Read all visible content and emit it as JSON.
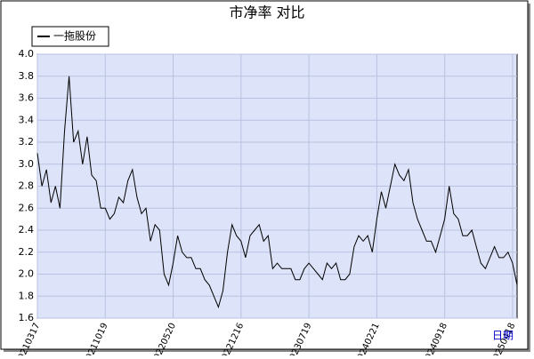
{
  "chart_data": {
    "type": "line",
    "title": "市净率  对比",
    "x_label": "日期",
    "categories": [
      "20210317",
      null,
      null,
      null,
      null,
      null,
      null,
      null,
      null,
      null,
      null,
      null,
      null,
      null,
      null,
      "20211019",
      null,
      null,
      null,
      null,
      null,
      null,
      null,
      null,
      null,
      null,
      null,
      null,
      null,
      null,
      "20220520",
      null,
      null,
      null,
      null,
      null,
      null,
      null,
      null,
      null,
      null,
      null,
      null,
      null,
      null,
      "20221216",
      null,
      null,
      null,
      null,
      null,
      null,
      null,
      null,
      null,
      null,
      null,
      null,
      null,
      null,
      "20230719",
      null,
      null,
      null,
      null,
      null,
      null,
      null,
      null,
      null,
      null,
      null,
      null,
      null,
      null,
      "20240221",
      null,
      null,
      null,
      null,
      null,
      null,
      null,
      null,
      null,
      null,
      null,
      null,
      null,
      null,
      "20240918",
      null,
      null,
      null,
      null,
      null,
      null,
      null,
      null,
      null,
      null,
      null,
      null,
      null,
      null,
      "20250418",
      null
    ],
    "series": [
      {
        "name": "一拖股份",
        "color": "#000000",
        "values": [
          3.1,
          2.8,
          2.95,
          2.65,
          2.8,
          2.6,
          3.3,
          3.8,
          3.2,
          3.3,
          3.0,
          3.25,
          2.9,
          2.85,
          2.6,
          2.6,
          2.5,
          2.55,
          2.7,
          2.65,
          2.85,
          2.95,
          2.7,
          2.55,
          2.6,
          2.3,
          2.45,
          2.4,
          2.0,
          1.9,
          2.1,
          2.35,
          2.2,
          2.15,
          2.15,
          2.05,
          2.05,
          1.95,
          1.9,
          1.8,
          1.7,
          1.85,
          2.2,
          2.45,
          2.35,
          2.3,
          2.15,
          2.35,
          2.4,
          2.45,
          2.3,
          2.35,
          2.05,
          2.1,
          2.05,
          2.05,
          2.05,
          1.95,
          1.95,
          2.05,
          2.1,
          2.05,
          2.0,
          1.95,
          2.1,
          2.05,
          2.1,
          1.95,
          1.95,
          2.0,
          2.25,
          2.35,
          2.3,
          2.35,
          2.2,
          2.5,
          2.75,
          2.6,
          2.8,
          3.0,
          2.9,
          2.85,
          2.95,
          2.65,
          2.5,
          2.4,
          2.3,
          2.3,
          2.2,
          2.35,
          2.5,
          2.8,
          2.55,
          2.5,
          2.35,
          2.35,
          2.4,
          2.25,
          2.1,
          2.05,
          2.15,
          2.25,
          2.15,
          2.15,
          2.2,
          2.1,
          1.9
        ]
      }
    ],
    "ylim": [
      1.6,
      4.0
    ],
    "yticks": [
      1.6,
      1.8,
      {
        "value": 2.0,
        "label": "2.0"
      },
      2.2,
      2.4,
      2.6,
      2.8,
      {
        "value": 3.0,
        "label": "3.0"
      },
      3.2,
      3.4,
      3.6,
      3.8,
      {
        "value": 4.0,
        "label": "4.0"
      }
    ],
    "grid": true,
    "plot_background": "#dde3f8"
  }
}
